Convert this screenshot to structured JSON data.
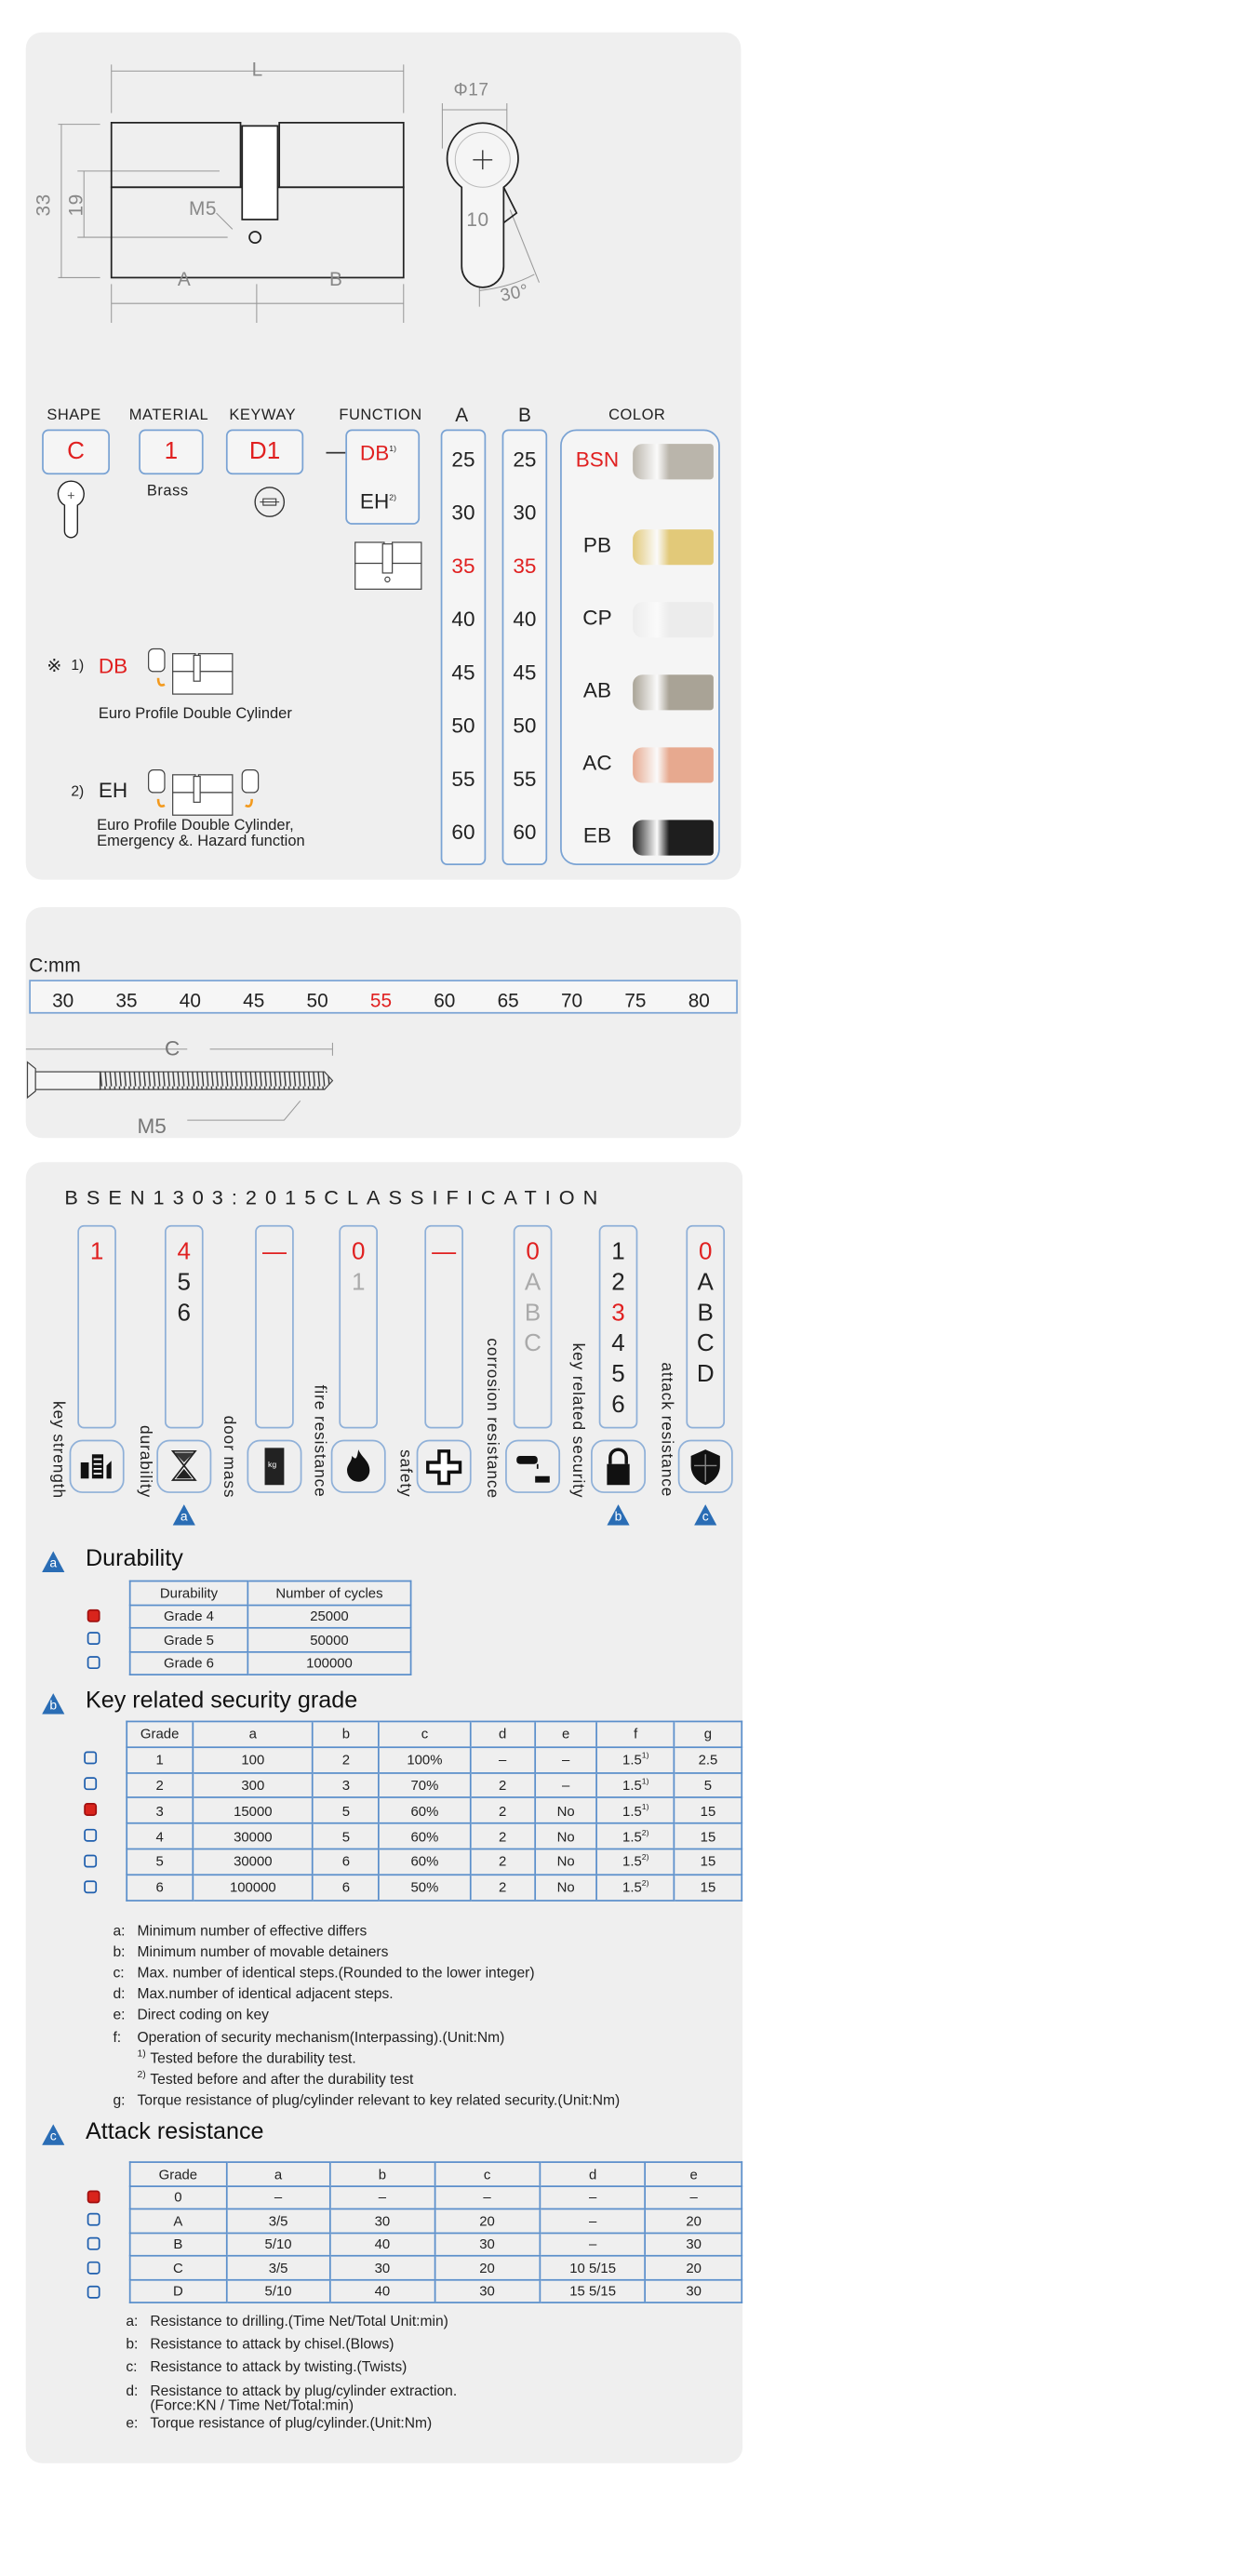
{
  "drawing": {
    "L": "L",
    "h33": "33",
    "h19": "19",
    "M5": "M5",
    "A": "A",
    "B": "B",
    "phi17": "Φ17",
    "d10": "10",
    "angle": "30°"
  },
  "spec": {
    "shape": {
      "label": "SHAPE",
      "value": "C"
    },
    "material": {
      "label": "MATERIAL",
      "value": "1",
      "sub": "Brass"
    },
    "keyway": {
      "label": "KEYWAY",
      "value": "D1"
    },
    "function": {
      "label": "FUNCTION",
      "options": [
        {
          "v": "DB",
          "sup": "1)",
          "selected": true
        },
        {
          "v": "EH",
          "sup": "2)",
          "selected": false
        }
      ]
    },
    "A": {
      "label": "A",
      "values": [
        "25",
        "30",
        "35",
        "40",
        "45",
        "50",
        "55",
        "60"
      ],
      "selected": "35"
    },
    "B": {
      "label": "B",
      "values": [
        "25",
        "30",
        "35",
        "40",
        "45",
        "50",
        "55",
        "60"
      ],
      "selected": "35"
    },
    "color": {
      "label": "COLOR",
      "selected": "BSN",
      "items": [
        {
          "name": "BSN",
          "hex": "#bab5ab"
        },
        {
          "name": "PB",
          "hex": "#e2c979"
        },
        {
          "name": "CP",
          "hex": "#ececec"
        },
        {
          "name": "AB",
          "hex": "#a9a396"
        },
        {
          "name": "AC",
          "hex": "#e7a98f"
        },
        {
          "name": "EB",
          "hex": "#1e1e1e"
        }
      ]
    }
  },
  "notes": {
    "db": {
      "mark": "※",
      "num": "1)",
      "code": "DB",
      "desc": "Euro Profile Double Cylinder"
    },
    "eh": {
      "num": "2)",
      "code": "EH",
      "desc1": "Euro Profile Double Cylinder,",
      "desc2": "Emergency &. Hazard function"
    }
  },
  "screw": {
    "unit": "C:mm",
    "values": [
      "30",
      "35",
      "40",
      "45",
      "50",
      "55",
      "60",
      "65",
      "70",
      "75",
      "80"
    ],
    "selected": "55",
    "C": "C",
    "M5": "M5"
  },
  "classification": {
    "title": "BSEN1303:2015CLASSIFICATION",
    "columns": [
      {
        "label": "key strength",
        "icon": "key-strength-icon",
        "vals": [
          [
            "1",
            "r"
          ]
        ]
      },
      {
        "label": "durability",
        "icon": "hourglass-icon",
        "vals": [
          [
            "4",
            "r"
          ],
          [
            "5",
            "k"
          ],
          [
            "6",
            "k"
          ]
        ],
        "ref": "a"
      },
      {
        "label": "door mass",
        "icon": "door-mass-icon",
        "vals": [
          [
            "—",
            "r"
          ]
        ]
      },
      {
        "label": "fire resistance",
        "icon": "fire-icon",
        "vals": [
          [
            "0",
            "r"
          ],
          [
            "1",
            "g"
          ]
        ]
      },
      {
        "label": "safety",
        "icon": "safety-cross-icon",
        "vals": [
          [
            "—",
            "r"
          ]
        ]
      },
      {
        "label": "corrosion resistance",
        "icon": "corrosion-icon",
        "vals": [
          [
            "0",
            "r"
          ],
          [
            "A",
            "g"
          ],
          [
            "B",
            "g"
          ],
          [
            "C",
            "g"
          ]
        ]
      },
      {
        "label": "key related security",
        "icon": "padlock-icon",
        "vals": [
          [
            "1",
            "k"
          ],
          [
            "2",
            "k"
          ],
          [
            "3",
            "r"
          ],
          [
            "4",
            "k"
          ],
          [
            "5",
            "k"
          ],
          [
            "6",
            "k"
          ]
        ],
        "ref": "b"
      },
      {
        "label": "attack resistance",
        "icon": "shield-icon",
        "vals": [
          [
            "0",
            "r"
          ],
          [
            "A",
            "k"
          ],
          [
            "B",
            "k"
          ],
          [
            "C",
            "k"
          ],
          [
            "D",
            "k"
          ]
        ],
        "ref": "c"
      }
    ],
    "accent": "#2a6db5",
    "selected_color": "#d9241c"
  },
  "durability": {
    "ref": "a",
    "title": "Durability",
    "headers": [
      "Durability",
      "Number of cycles"
    ],
    "rows": [
      {
        "c": [
          "Grade 4",
          "25000"
        ],
        "on": true
      },
      {
        "c": [
          "Grade 5",
          "50000"
        ],
        "on": false
      },
      {
        "c": [
          "Grade 6",
          "100000"
        ],
        "on": false
      }
    ]
  },
  "keysec": {
    "ref": "b",
    "title": "Key related security grade",
    "headers": [
      "Grade",
      "a",
      "b",
      "c",
      "d",
      "e",
      "f",
      "g"
    ],
    "rows": [
      {
        "c": [
          "1",
          "100",
          "2",
          "100%",
          "–",
          "–",
          "1.5",
          "2.5"
        ],
        "fsup": "1)",
        "on": false
      },
      {
        "c": [
          "2",
          "300",
          "3",
          "70%",
          "2",
          "–",
          "1.5",
          "5"
        ],
        "fsup": "1)",
        "on": false
      },
      {
        "c": [
          "3",
          "15000",
          "5",
          "60%",
          "2",
          "No",
          "1.5",
          "15"
        ],
        "fsup": "1)",
        "on": true
      },
      {
        "c": [
          "4",
          "30000",
          "5",
          "60%",
          "2",
          "No",
          "1.5",
          "15"
        ],
        "fsup": "2)",
        "on": false
      },
      {
        "c": [
          "5",
          "30000",
          "6",
          "60%",
          "2",
          "No",
          "1.5",
          "15"
        ],
        "fsup": "2)",
        "on": false
      },
      {
        "c": [
          "6",
          "100000",
          "6",
          "50%",
          "2",
          "No",
          "1.5",
          "15"
        ],
        "fsup": "2)",
        "on": false
      }
    ],
    "legend": [
      {
        "k": "a:",
        "t": "Minimum number of effective differs"
      },
      {
        "k": "b:",
        "t": "Minimum number of movable detainers"
      },
      {
        "k": "c:",
        "t": "Max. number of identical steps.(Rounded to the lower integer)"
      },
      {
        "k": "d:",
        "t": "Max.number of identical adjacent steps."
      },
      {
        "k": "e:",
        "t": "Direct coding on key"
      },
      {
        "k": "f:",
        "t": "Operation of security mechanism(Interpassing).(Unit:Nm)"
      },
      {
        "k": "1)",
        "t": "Tested before the durability test.",
        "sub": true
      },
      {
        "k": "2)",
        "t": "Tested before and after the durability test",
        "sub": true
      },
      {
        "k": "g:",
        "t": "Torque resistance of plug/cylinder relevant to key related security.(Unit:Nm)"
      }
    ]
  },
  "attack": {
    "ref": "c",
    "title": "Attack resistance",
    "headers": [
      "Grade",
      "a",
      "b",
      "c",
      "d",
      "e"
    ],
    "rows": [
      {
        "c": [
          "0",
          "–",
          "–",
          "–",
          "–",
          "–"
        ],
        "on": true
      },
      {
        "c": [
          "A",
          "3/5",
          "30",
          "20",
          "–",
          "20"
        ],
        "on": false
      },
      {
        "c": [
          "B",
          "5/10",
          "40",
          "30",
          "–",
          "30"
        ],
        "on": false
      },
      {
        "c": [
          "C",
          "3/5",
          "30",
          "20",
          "10  5/15",
          "20"
        ],
        "on": false
      },
      {
        "c": [
          "D",
          "5/10",
          "40",
          "30",
          "15  5/15",
          "30"
        ],
        "on": false
      }
    ],
    "legend": [
      {
        "k": "a:",
        "t": "Resistance to drilling.(Time Net/Total Unit:min)"
      },
      {
        "k": "b:",
        "t": "Resistance to attack by chisel.(Blows)"
      },
      {
        "k": "c:",
        "t": "Resistance to attack by twisting.(Twists)"
      },
      {
        "k": "d:",
        "t": "Resistance to attack by plug/cylinder extraction.",
        "t2": "(Force:KN  /  Time Net/Total:min)"
      },
      {
        "k": "e:",
        "t": "Torque resistance of plug/cylinder.(Unit:Nm)"
      }
    ]
  }
}
